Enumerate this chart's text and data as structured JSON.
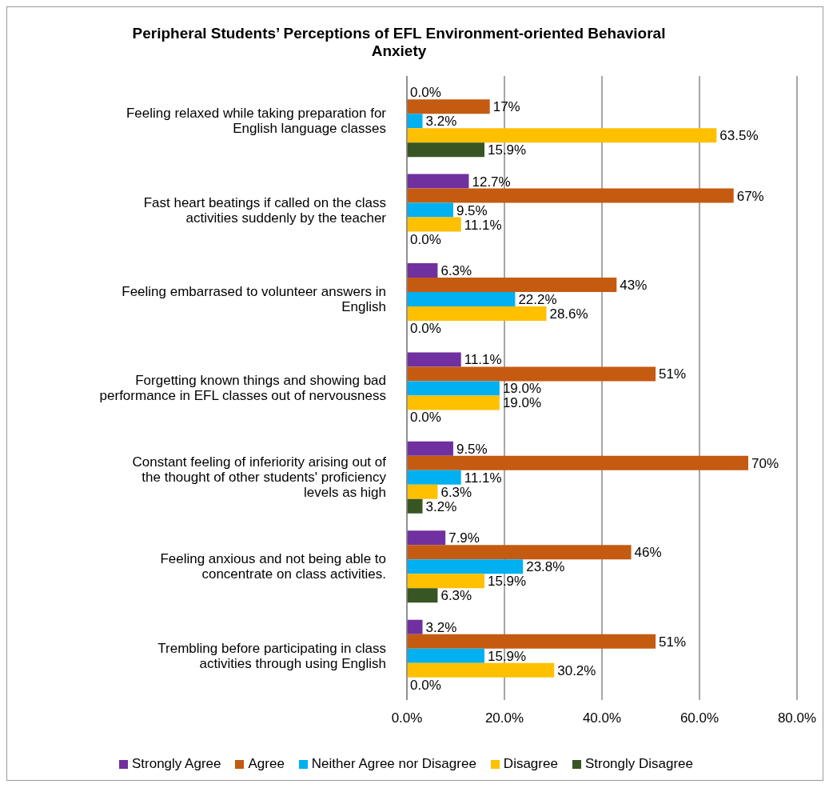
{
  "chart_data": {
    "type": "bar",
    "orientation": "horizontal",
    "title": "Peripheral Students’ Perceptions of EFL Environment-oriented Behavioral Anxiety",
    "categories": [
      "Feeling relaxed while taking preparation for English language classes",
      "Fast heart beatings if called on the class activities suddenly by the teacher",
      "Feeling embarrased to volunteer answers in English",
      "Forgetting known things and showing bad performance in EFL classes out of nervousness",
      "Constant feeling of inferiority arising out of the thought of other students' proficiency levels as high",
      "Feeling anxious and not being able to concentrate on class activities.",
      "Trembling before participating in class activities through using English"
    ],
    "series": [
      {
        "name": "Strongly Agree",
        "color": "#7030a0",
        "values": [
          0.0,
          12.7,
          6.3,
          11.1,
          9.5,
          7.9,
          3.2
        ],
        "value_labels": [
          "0.0%",
          "12.7%",
          "6.3%",
          "11.1%",
          "9.5%",
          "7.9%",
          "3.2%"
        ]
      },
      {
        "name": "Agree",
        "color": "#c55a11",
        "values": [
          17,
          67,
          43,
          51,
          70,
          46,
          51
        ],
        "value_labels": [
          "17%",
          "67%",
          "43%",
          "51%",
          "70%",
          "46%",
          "51%"
        ]
      },
      {
        "name": "Neither Agree nor Disagree",
        "color": "#00b0f0",
        "values": [
          3.2,
          9.5,
          22.2,
          19.0,
          11.1,
          23.8,
          15.9
        ],
        "value_labels": [
          "3.2%",
          "9.5%",
          "22.2%",
          "19.0%",
          "11.1%",
          "23.8%",
          "15.9%"
        ]
      },
      {
        "name": "Disagree",
        "color": "#ffc000",
        "values": [
          63.5,
          11.1,
          28.6,
          19.0,
          6.3,
          15.9,
          30.2
        ],
        "value_labels": [
          "63.5%",
          "11.1%",
          "28.6%",
          "19.0%",
          "6.3%",
          "15.9%",
          "30.2%"
        ]
      },
      {
        "name": "Strongly Disagree",
        "color": "#375623",
        "values": [
          15.9,
          0.0,
          0.0,
          0.0,
          3.2,
          6.3,
          0.0
        ],
        "value_labels": [
          "15.9%",
          "0.0%",
          "0.0%",
          "0.0%",
          "3.2%",
          "6.3%",
          "0.0%"
        ]
      }
    ],
    "xlim": [
      0,
      80
    ],
    "xticks": [
      {
        "value": 0,
        "label": "0.0%"
      },
      {
        "value": 20,
        "label": "20.0%"
      },
      {
        "value": 40,
        "label": "40.0%"
      },
      {
        "value": 60,
        "label": "60.0%"
      },
      {
        "value": 80,
        "label": "80.0%"
      }
    ],
    "grid": "x",
    "legend": "bottom"
  }
}
